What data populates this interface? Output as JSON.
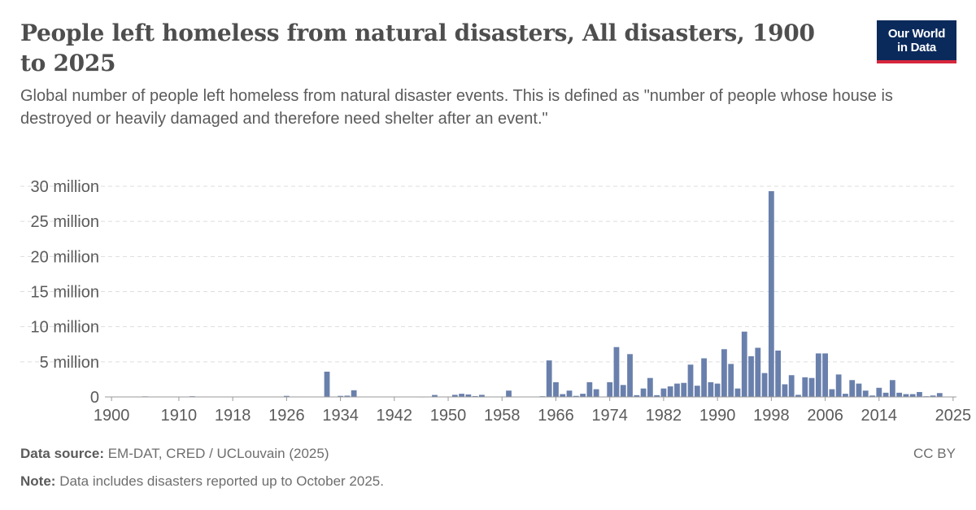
{
  "header": {
    "title": "People left homeless from natural disasters, All disasters, 1900 to 2025",
    "subtitle": "Global number of people left homeless from natural disaster events. This is defined as \"number of people whose house is destroyed or heavily damaged and therefore need shelter after an event.\""
  },
  "logo": {
    "line1": "Our World",
    "line2": "in Data"
  },
  "footer": {
    "source_label": "Data source:",
    "source_text": "EM-DAT, CRED / UCLouvain (2025)",
    "note_label": "Note:",
    "note_text": "Data includes disasters reported up to October 2025.",
    "license": "CC BY"
  },
  "colors": {
    "bar": "#6a80ac",
    "grid": "#dddddd",
    "axis": "#999999",
    "text": "#5b5b5b"
  },
  "chart_data": {
    "type": "bar",
    "title": "People left homeless from natural disasters, All disasters, 1900 to 2025",
    "xlabel": "",
    "ylabel": "",
    "ylim": [
      0,
      30000000
    ],
    "yticks": [
      {
        "value": 0,
        "label": "0"
      },
      {
        "value": 5000000,
        "label": "5 million"
      },
      {
        "value": 10000000,
        "label": "10 million"
      },
      {
        "value": 15000000,
        "label": "15 million"
      },
      {
        "value": 20000000,
        "label": "20 million"
      },
      {
        "value": 25000000,
        "label": "25 million"
      },
      {
        "value": 30000000,
        "label": "30 million"
      }
    ],
    "xticks": [
      "1900",
      "1910",
      "1918",
      "1926",
      "1934",
      "1942",
      "1950",
      "1958",
      "1966",
      "1974",
      "1982",
      "1990",
      "1998",
      "2006",
      "2014",
      "2025"
    ],
    "grid": true,
    "legend": "none",
    "x": [
      1900,
      1901,
      1902,
      1903,
      1904,
      1905,
      1906,
      1907,
      1908,
      1909,
      1910,
      1911,
      1912,
      1913,
      1914,
      1915,
      1916,
      1917,
      1918,
      1919,
      1920,
      1921,
      1922,
      1923,
      1924,
      1925,
      1926,
      1927,
      1928,
      1929,
      1930,
      1931,
      1932,
      1933,
      1934,
      1935,
      1936,
      1937,
      1938,
      1939,
      1940,
      1941,
      1942,
      1943,
      1944,
      1945,
      1946,
      1947,
      1948,
      1949,
      1950,
      1951,
      1952,
      1953,
      1954,
      1955,
      1956,
      1957,
      1958,
      1959,
      1960,
      1961,
      1962,
      1963,
      1964,
      1965,
      1966,
      1967,
      1968,
      1969,
      1970,
      1971,
      1972,
      1973,
      1974,
      1975,
      1976,
      1977,
      1978,
      1979,
      1980,
      1981,
      1982,
      1983,
      1984,
      1985,
      1986,
      1987,
      1988,
      1989,
      1990,
      1991,
      1992,
      1993,
      1994,
      1995,
      1996,
      1997,
      1998,
      1999,
      2000,
      2001,
      2002,
      2003,
      2004,
      2005,
      2006,
      2007,
      2008,
      2009,
      2010,
      2011,
      2012,
      2013,
      2014,
      2015,
      2016,
      2017,
      2018,
      2019,
      2020,
      2021,
      2022,
      2023,
      2024,
      2025
    ],
    "values": [
      0,
      0,
      0,
      0,
      0,
      80000,
      0,
      0,
      0,
      0,
      0,
      0,
      100000,
      0,
      0,
      0,
      0,
      0,
      0,
      0,
      0,
      0,
      0,
      0,
      0,
      0,
      150000,
      0,
      0,
      0,
      0,
      0,
      3600000,
      0,
      150000,
      180000,
      950000,
      0,
      0,
      0,
      0,
      0,
      0,
      0,
      0,
      0,
      30000,
      0,
      280000,
      0,
      0,
      300000,
      450000,
      350000,
      120000,
      300000,
      0,
      0,
      0,
      900000,
      0,
      0,
      0,
      0,
      100000,
      5200000,
      2100000,
      400000,
      900000,
      150000,
      450000,
      2100000,
      1100000,
      0,
      2100000,
      7100000,
      1700000,
      6100000,
      250000,
      1200000,
      2700000,
      250000,
      1200000,
      1500000,
      1900000,
      2000000,
      4600000,
      1600000,
      5500000,
      2100000,
      1900000,
      6800000,
      4700000,
      1200000,
      9300000,
      5800000,
      7000000,
      3400000,
      29300000,
      6600000,
      1800000,
      3100000,
      300000,
      2800000,
      2700000,
      6200000,
      6200000,
      1100000,
      3200000,
      450000,
      2400000,
      1900000,
      900000,
      200000,
      1300000,
      600000,
      2400000,
      600000,
      400000,
      400000,
      700000,
      100000,
      200000,
      550000,
      0,
      0
    ]
  }
}
